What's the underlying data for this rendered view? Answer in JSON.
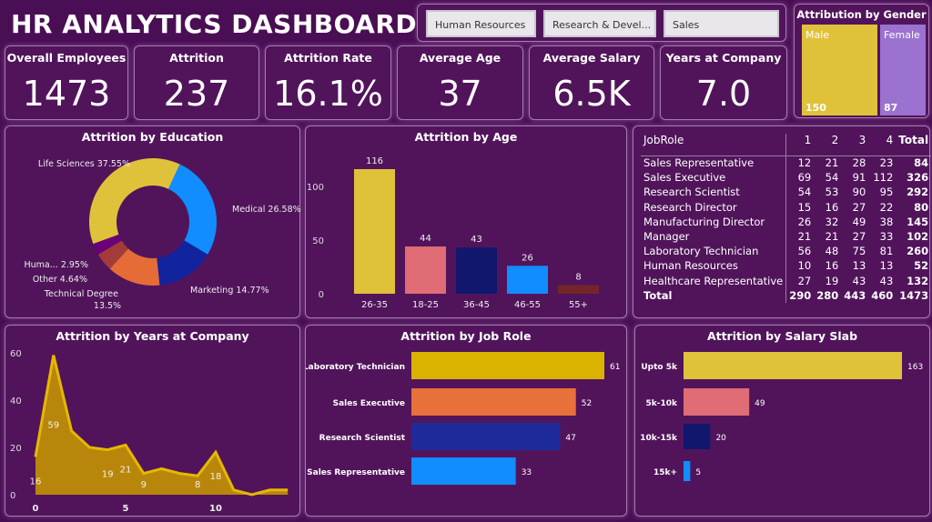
{
  "title": "HR ANALYTICS DASHBOARD",
  "slicers": [
    "Human Resources",
    "Research & Devel...",
    "Sales"
  ],
  "gender": {
    "title": "Attribution by Gender",
    "items": [
      {
        "label": "Male",
        "value": 150,
        "color": "#e0c23a"
      },
      {
        "label": "Female",
        "value": 87,
        "color": "#9b72cf"
      }
    ]
  },
  "kpis": [
    {
      "label": "Overall Employees",
      "value": "1473"
    },
    {
      "label": "Attrition",
      "value": "237"
    },
    {
      "label": "Attrition Rate",
      "value": "16.1%"
    },
    {
      "label": "Average Age",
      "value": "37"
    },
    {
      "label": "Average Salary",
      "value": "6.5K"
    },
    {
      "label": "Years at Company",
      "value": "7.0"
    }
  ],
  "table": {
    "headers": [
      "JobRole",
      "1",
      "2",
      "3",
      "4",
      "Total"
    ],
    "rows": [
      [
        "Sales Representative",
        "12",
        "21",
        "28",
        "23",
        "84"
      ],
      [
        "Sales Executive",
        "69",
        "54",
        "91",
        "112",
        "326"
      ],
      [
        "Research Scientist",
        "54",
        "53",
        "90",
        "95",
        "292"
      ],
      [
        "Research Director",
        "15",
        "16",
        "27",
        "22",
        "80"
      ],
      [
        "Manufacturing Director",
        "26",
        "32",
        "49",
        "38",
        "145"
      ],
      [
        "Manager",
        "21",
        "21",
        "27",
        "33",
        "102"
      ],
      [
        "Laboratory Technician",
        "56",
        "48",
        "75",
        "81",
        "260"
      ],
      [
        "Human Resources",
        "10",
        "16",
        "13",
        "13",
        "52"
      ],
      [
        "Healthcare Representative",
        "27",
        "19",
        "43",
        "43",
        "132"
      ]
    ],
    "total": [
      "Total",
      "290",
      "280",
      "443",
      "460",
      "1473"
    ]
  },
  "chart_data": [
    {
      "type": "pie",
      "title": "Attrition by Education",
      "categories": [
        "Medical",
        "Marketing",
        "Technical Degree",
        "Other",
        "Huma...",
        "Life Sciences"
      ],
      "values": [
        26.58,
        14.77,
        13.5,
        4.64,
        2.95,
        37.55
      ],
      "labels": [
        "Medical 26.58%",
        "Marketing 14.77%",
        "Technical Degree",
        "Other 4.64%",
        "Huma... 2.95%",
        "Life Sciences 37.55%"
      ],
      "label_extra": "13.5%",
      "colors": [
        "#118dff",
        "#12239e",
        "#e66c37",
        "#a33b3b",
        "#6b007b",
        "#e0c23a"
      ]
    },
    {
      "type": "bar",
      "title": "Attrition by Age",
      "categories": [
        "26-35",
        "18-25",
        "36-45",
        "46-55",
        "55+"
      ],
      "values": [
        116,
        44,
        43,
        26,
        8
      ],
      "colors": [
        "#e0c23a",
        "#e06c75",
        "#12176e",
        "#118dff",
        "#74252a"
      ],
      "yticks": [
        0,
        50,
        100
      ],
      "ylim": [
        0,
        120
      ]
    },
    {
      "type": "area",
      "title": "Attrition by Years at Company",
      "x": [
        0,
        1,
        2,
        3,
        4,
        5,
        6,
        7,
        8,
        9,
        10,
        11,
        12,
        13,
        14
      ],
      "values": [
        16,
        59,
        27,
        20,
        19,
        21,
        9,
        11,
        9,
        8,
        18,
        2,
        0,
        2,
        2
      ],
      "labeled": [
        0,
        1,
        4,
        5,
        6,
        9,
        10
      ],
      "yticks": [
        0,
        20,
        40,
        60
      ],
      "xticks": [
        0,
        5,
        10
      ],
      "ylim": [
        0,
        60
      ]
    },
    {
      "type": "bar",
      "title": "Attrition by Job Role",
      "orientation": "horizontal",
      "categories": [
        "Laboratory Technician",
        "Sales Executive",
        "Research Scientist",
        "Sales Representative"
      ],
      "values": [
        61,
        52,
        47,
        33
      ],
      "colors": [
        "#d9b300",
        "#e8703a",
        "#1f2a9a",
        "#118dff"
      ]
    },
    {
      "type": "bar",
      "title": "Attrition by Salary Slab",
      "orientation": "horizontal",
      "categories": [
        "Upto 5k",
        "5k-10k",
        "10k-15k",
        "15k+"
      ],
      "values": [
        163,
        49,
        20,
        5
      ],
      "colors": [
        "#e0c23a",
        "#e06c75",
        "#12176e",
        "#118dff"
      ]
    }
  ]
}
